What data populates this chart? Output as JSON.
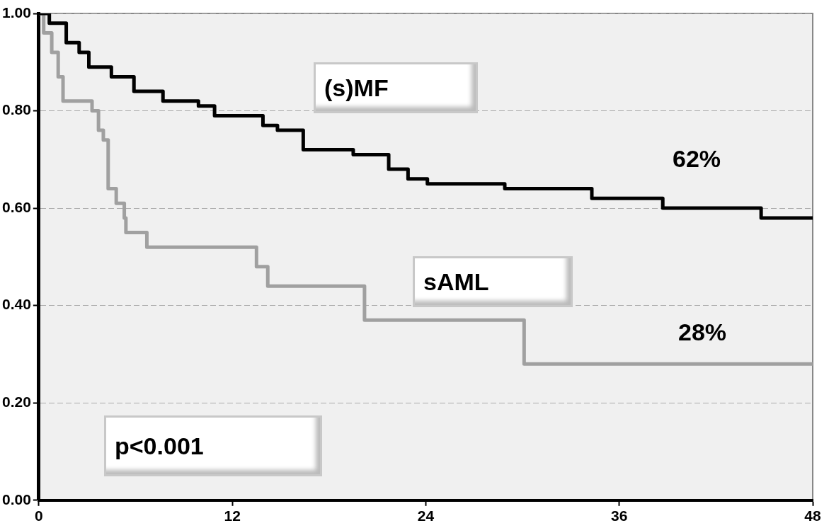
{
  "chart_data": {
    "type": "step",
    "xlim": [
      0,
      48
    ],
    "xticks": [
      0,
      12,
      24,
      36,
      48
    ],
    "ylim": [
      0,
      1
    ],
    "yticks": [
      {
        "value": 0,
        "label": "0.00"
      },
      {
        "value": 0.2,
        "label": "0.20"
      },
      {
        "value": 0.4,
        "label": "0.40"
      },
      {
        "value": 0.6,
        "label": "0.60"
      },
      {
        "value": 0.8,
        "label": "0.80"
      },
      {
        "value": 1,
        "label": "1.00"
      }
    ],
    "grid": "y",
    "legend": false,
    "series": [
      {
        "name": "(s)MF",
        "color": "#000000",
        "x": [
          0,
          0.65,
          1.7,
          2.5,
          3.1,
          4.5,
          5.9,
          7.7,
          9.9,
          10.9,
          13.9,
          14.8,
          16.4,
          19.5,
          21.7,
          22.9,
          24.1,
          28.9,
          34.3,
          38.7,
          44.8,
          48
        ],
        "values": [
          1,
          0.98,
          0.94,
          0.92,
          0.89,
          0.87,
          0.84,
          0.82,
          0.81,
          0.79,
          0.77,
          0.76,
          0.72,
          0.71,
          0.68,
          0.66,
          0.65,
          0.64,
          0.62,
          0.6,
          0.58,
          0.58
        ]
      },
      {
        "name": "sAML",
        "color": "#a0a0a0",
        "x": [
          0,
          0.3,
          0.8,
          1.2,
          1.5,
          3.3,
          3.7,
          4.0,
          4.3,
          4.8,
          5.3,
          5.4,
          6.7,
          13.5,
          14.2,
          20.2,
          30.1,
          48
        ],
        "values": [
          1,
          0.96,
          0.92,
          0.87,
          0.82,
          0.8,
          0.76,
          0.74,
          0.64,
          0.61,
          0.58,
          0.55,
          0.52,
          0.48,
          0.44,
          0.37,
          0.28,
          0.28
        ]
      }
    ],
    "annotations": [
      "62%",
      "28%",
      "p<0.001"
    ]
  }
}
